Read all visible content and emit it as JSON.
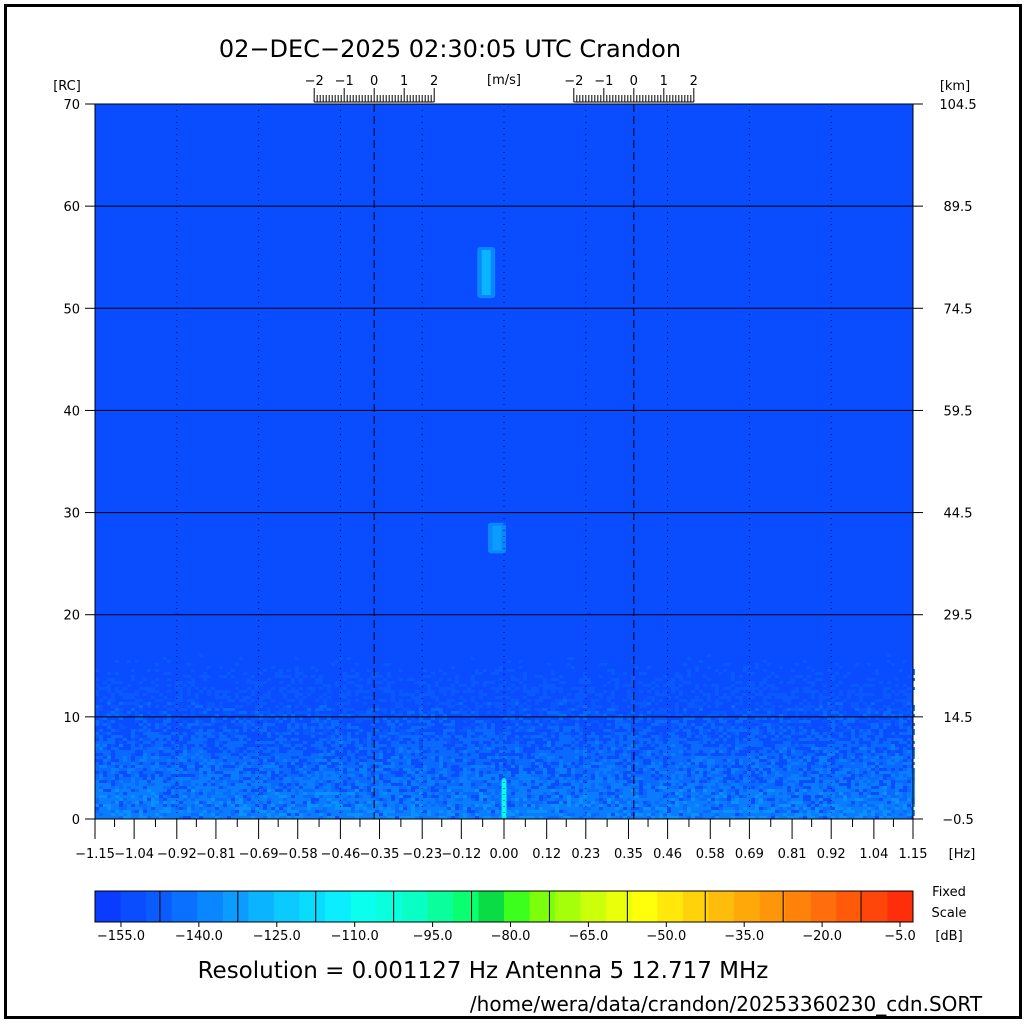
{
  "chart_data": {
    "type": "heatmap",
    "title": "02−DEC−2025 02:30:05 UTC   Crandon",
    "xunit": "[Hz]",
    "yunit_left": "[RC]",
    "yunit_right": "[km]",
    "top_axis_unit": "[m/s]",
    "xlim": [
      -1.15,
      1.15
    ],
    "ylim": [
      0,
      70
    ],
    "x_ticks": [
      "−1.15",
      "−1.04",
      "−0.92",
      "−0.81",
      "−0.69",
      "−0.58",
      "−0.46",
      "−0.35",
      "−0.23",
      "−0.12",
      "0.00",
      "0.12",
      "0.23",
      "0.35",
      "0.46",
      "0.58",
      "0.69",
      "0.81",
      "0.92",
      "1.04",
      "1.15"
    ],
    "x_tick_values": [
      -1.15,
      -1.04,
      -0.92,
      -0.81,
      -0.69,
      -0.58,
      -0.46,
      -0.35,
      -0.23,
      -0.12,
      0.0,
      0.12,
      0.23,
      0.35,
      0.46,
      0.58,
      0.69,
      0.81,
      0.92,
      1.04,
      1.15
    ],
    "y_left_ticks": [
      "0",
      "10",
      "20",
      "30",
      "40",
      "50",
      "60",
      "70"
    ],
    "y_left_values": [
      0,
      10,
      20,
      30,
      40,
      50,
      60,
      70
    ],
    "y_right_ticks": [
      "−0.5",
      "14.5",
      "29.5",
      "44.5",
      "59.5",
      "74.5",
      "89.5",
      "104.5"
    ],
    "top_axis_groups": [
      {
        "center_hz": -0.365,
        "labels": [
          "−2",
          "−1",
          "0",
          "1",
          "2"
        ]
      },
      {
        "center_hz": 0.365,
        "labels": [
          "−2",
          "−1",
          "0",
          "1",
          "2"
        ]
      }
    ],
    "bragg_lines_hz": [
      -0.365,
      0.365
    ],
    "background_level_db": -155,
    "features": [
      {
        "hz": -0.05,
        "rc_from": 51,
        "rc_to": 56,
        "level_db": -130
      },
      {
        "hz": -0.02,
        "rc_from": 26,
        "rc_to": 29,
        "level_db": -132
      },
      {
        "hz": 0.0,
        "rc_from": 0,
        "rc_to": 4,
        "level_db": -105
      }
    ],
    "noise_band_rc": [
      0,
      20
    ],
    "colorbar": {
      "unit": "[dB]",
      "label_lines": [
        "Fixed",
        "Scale"
      ],
      "min": -160,
      "max": -2.5,
      "tick_labels": [
        "−155.0",
        "−140.0",
        "−125.0",
        "−110.0",
        "−95.0",
        "−80.0",
        "−65.0",
        "−50.0",
        "−35.0",
        "−20.0",
        "−5.0"
      ],
      "tick_values": [
        -155,
        -140,
        -125,
        -110,
        -95,
        -80,
        -65,
        -50,
        -35,
        -20,
        -5
      ],
      "colors": [
        "#0a3cff",
        "#0a4cff",
        "#0a5cff",
        "#0a70ff",
        "#0a86ff",
        "#0a9cff",
        "#0ab4ff",
        "#0acaff",
        "#0adcff",
        "#0aeeff",
        "#0affee",
        "#0affdc",
        "#0affc6",
        "#0aff9c",
        "#0aff70",
        "#0adc46",
        "#3cff1e",
        "#7cff0a",
        "#a6ff0a",
        "#ccff0a",
        "#eaff0a",
        "#ffff0a",
        "#ffe80a",
        "#ffd20a",
        "#ffbc0a",
        "#ffa80a",
        "#ff960a",
        "#ff820a",
        "#ff6e0a",
        "#ff5a0a",
        "#ff460a",
        "#ff2e0a"
      ]
    }
  },
  "footer": {
    "resolution": "Resolution = 0.001127 Hz   Antenna  5   12.717 MHz",
    "path": "/home/wera/data/crandon/20253360230_cdn.SORT"
  }
}
